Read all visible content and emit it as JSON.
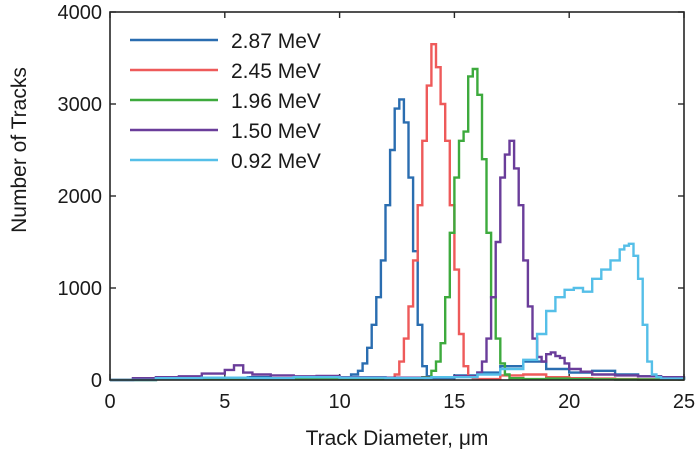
{
  "chart_data": {
    "type": "line",
    "title": "",
    "xlabel": "Track Diameter, μm",
    "ylabel": "Number of Tracks",
    "xlim": [
      0,
      25
    ],
    "ylim": [
      0,
      4000
    ],
    "xticks": [
      0,
      5,
      10,
      15,
      20,
      25
    ],
    "yticks": [
      0,
      1000,
      2000,
      3000,
      4000
    ],
    "grid": false,
    "legend_position": "top-left",
    "series": [
      {
        "name": "2.87 MeV",
        "color": "#2a6db0",
        "x": [
          0,
          1,
          2,
          3,
          4,
          5,
          6,
          7,
          8,
          9,
          10,
          10.5,
          10.8,
          11.0,
          11.2,
          11.4,
          11.6,
          11.8,
          12.0,
          12.2,
          12.4,
          12.6,
          12.8,
          13.0,
          13.2,
          13.4,
          13.6,
          13.8,
          14.0,
          15,
          16,
          17,
          18,
          19,
          20,
          21,
          22,
          23,
          24,
          25
        ],
        "y": [
          0,
          15,
          20,
          10,
          25,
          20,
          30,
          20,
          15,
          25,
          30,
          60,
          100,
          180,
          350,
          600,
          900,
          1300,
          1900,
          2500,
          2950,
          3050,
          2800,
          2200,
          1400,
          600,
          150,
          40,
          20,
          50,
          80,
          150,
          200,
          120,
          80,
          100,
          60,
          40,
          20,
          10
        ]
      },
      {
        "name": "2.45 MeV",
        "color": "#ee5a5a",
        "x": [
          0,
          2,
          4,
          6,
          8,
          10,
          12,
          12.4,
          12.6,
          12.8,
          13.0,
          13.2,
          13.4,
          13.6,
          13.8,
          14.0,
          14.2,
          14.4,
          14.6,
          14.8,
          15.0,
          15.2,
          15.4,
          15.6,
          15.8,
          16.0,
          17,
          18,
          19,
          20,
          21,
          22,
          23,
          25
        ],
        "y": [
          0,
          10,
          15,
          10,
          20,
          15,
          20,
          60,
          200,
          450,
          800,
          1300,
          1900,
          2600,
          3200,
          3650,
          3400,
          3000,
          2600,
          1900,
          1200,
          500,
          150,
          40,
          20,
          10,
          50,
          60,
          30,
          20,
          15,
          10,
          5,
          0
        ]
      },
      {
        "name": "1.96 MeV",
        "color": "#3daa3d",
        "x": [
          0,
          2,
          4,
          6,
          8,
          10,
          12,
          13.6,
          14.0,
          14.2,
          14.4,
          14.6,
          14.8,
          15.0,
          15.2,
          15.4,
          15.6,
          15.8,
          16.0,
          16.2,
          16.4,
          16.6,
          16.8,
          17.0,
          17.2,
          17.4,
          18,
          19,
          20,
          21,
          22,
          23,
          25
        ],
        "y": [
          0,
          10,
          10,
          15,
          20,
          15,
          10,
          30,
          100,
          200,
          400,
          900,
          1600,
          2200,
          2600,
          2700,
          3300,
          3380,
          3100,
          2400,
          1600,
          900,
          450,
          180,
          60,
          20,
          10,
          15,
          10,
          8,
          5,
          5,
          0
        ]
      },
      {
        "name": "1.50 MeV",
        "color": "#6a3d9a",
        "x": [
          0,
          1,
          2,
          3,
          4,
          5.0,
          5.4,
          5.8,
          6.2,
          7,
          8,
          9,
          10,
          12,
          14,
          15,
          16.0,
          16.2,
          16.4,
          16.6,
          16.8,
          17.0,
          17.2,
          17.4,
          17.6,
          17.8,
          18.0,
          18.2,
          18.4,
          18.6,
          18.8,
          19.0,
          19.2,
          19.4,
          19.6,
          19.8,
          20.0,
          20.5,
          21,
          22,
          23,
          24,
          25
        ],
        "y": [
          0,
          20,
          30,
          40,
          70,
          110,
          160,
          80,
          60,
          50,
          40,
          45,
          30,
          25,
          30,
          40,
          80,
          200,
          450,
          900,
          1500,
          2200,
          2450,
          2600,
          2300,
          1900,
          1300,
          800,
          450,
          250,
          200,
          280,
          300,
          260,
          240,
          180,
          120,
          90,
          60,
          50,
          40,
          30,
          20
        ]
      },
      {
        "name": "0.92 MeV",
        "color": "#55bfe8",
        "x": [
          0,
          2,
          4,
          6,
          8,
          10,
          12,
          14,
          16,
          17,
          18,
          18.6,
          19.0,
          19.4,
          19.8,
          20.2,
          20.6,
          21.0,
          21.4,
          21.8,
          22.2,
          22.4,
          22.6,
          22.8,
          23.0,
          23.2,
          23.4,
          23.6,
          23.8,
          24.0,
          25
        ],
        "y": [
          0,
          20,
          25,
          20,
          30,
          25,
          20,
          30,
          60,
          120,
          220,
          500,
          750,
          900,
          980,
          1000,
          960,
          1100,
          1200,
          1300,
          1420,
          1460,
          1480,
          1350,
          1100,
          600,
          200,
          60,
          30,
          15,
          0
        ]
      }
    ]
  }
}
